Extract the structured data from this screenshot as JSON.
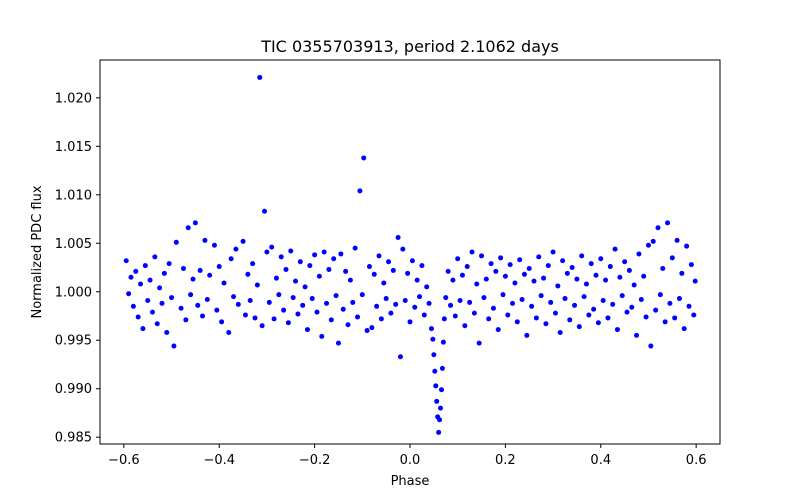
{
  "chart_data": {
    "type": "scatter",
    "title": "TIC 0355703913, period 2.1062 days",
    "xlabel": "Phase",
    "ylabel": "Normalized PDC flux",
    "xlim": [
      -0.65,
      0.65
    ],
    "ylim": [
      0.9843,
      1.0239
    ],
    "xticks": [
      -0.6,
      -0.4,
      -0.2,
      0.0,
      0.2,
      0.4,
      0.6
    ],
    "xtick_labels": [
      "−0.6",
      "−0.4",
      "−0.2",
      "0.0",
      "0.2",
      "0.4",
      "0.6"
    ],
    "yticks": [
      0.985,
      0.99,
      0.995,
      1.0,
      1.005,
      1.01,
      1.015,
      1.02
    ],
    "ytick_labels": [
      "0.985",
      "0.990",
      "0.995",
      "1.000",
      "1.005",
      "1.010",
      "1.015",
      "1.020"
    ],
    "marker_color": "#0000ff",
    "series": [
      {
        "name": "PDC flux",
        "points": [
          [
            -0.595,
            1.0032
          ],
          [
            -0.59,
            0.9998
          ],
          [
            -0.585,
            1.0015
          ],
          [
            -0.58,
            0.9985
          ],
          [
            -0.575,
            1.0021
          ],
          [
            -0.57,
            0.9974
          ],
          [
            -0.565,
            1.0008
          ],
          [
            -0.56,
            0.9962
          ],
          [
            -0.555,
            1.0027
          ],
          [
            -0.55,
            0.9991
          ],
          [
            -0.545,
            1.0012
          ],
          [
            -0.54,
            0.9979
          ],
          [
            -0.535,
            1.0036
          ],
          [
            -0.53,
            0.9967
          ],
          [
            -0.525,
            1.0004
          ],
          [
            -0.52,
            0.9988
          ],
          [
            -0.515,
            1.0019
          ],
          [
            -0.51,
            0.9958
          ],
          [
            -0.505,
            1.0029
          ],
          [
            -0.5,
            0.9994
          ],
          [
            -0.495,
            0.9944
          ],
          [
            -0.49,
            1.0051
          ],
          [
            -0.48,
            0.9983
          ],
          [
            -0.475,
            1.0024
          ],
          [
            -0.47,
            0.9971
          ],
          [
            -0.465,
            1.0066
          ],
          [
            -0.46,
            0.9997
          ],
          [
            -0.455,
            1.0013
          ],
          [
            -0.45,
            1.0071
          ],
          [
            -0.445,
            0.9986
          ],
          [
            -0.44,
            1.0022
          ],
          [
            -0.435,
            0.9975
          ],
          [
            -0.43,
            1.0053
          ],
          [
            -0.425,
            0.9992
          ],
          [
            -0.42,
            1.0017
          ],
          [
            -0.41,
            1.0048
          ],
          [
            -0.405,
            0.9981
          ],
          [
            -0.4,
            1.0026
          ],
          [
            -0.395,
            0.9969
          ],
          [
            -0.39,
            1.0009
          ],
          [
            -0.38,
            0.9958
          ],
          [
            -0.375,
            1.0034
          ],
          [
            -0.37,
            0.9995
          ],
          [
            -0.365,
            1.0044
          ],
          [
            -0.36,
            0.9987
          ],
          [
            -0.35,
            1.0052
          ],
          [
            -0.345,
            0.9976
          ],
          [
            -0.34,
            1.0018
          ],
          [
            -0.335,
            0.9991
          ],
          [
            -0.33,
            1.0029
          ],
          [
            -0.325,
            0.9973
          ],
          [
            -0.32,
            1.0007
          ],
          [
            -0.315,
            1.0221
          ],
          [
            -0.31,
            0.9965
          ],
          [
            -0.305,
            1.0083
          ],
          [
            -0.3,
            1.0041
          ],
          [
            -0.295,
            0.9989
          ],
          [
            -0.29,
            1.0046
          ],
          [
            -0.285,
            0.9972
          ],
          [
            -0.28,
            1.0014
          ],
          [
            -0.275,
            0.9997
          ],
          [
            -0.27,
            1.0036
          ],
          [
            -0.265,
            0.9981
          ],
          [
            -0.26,
            1.0023
          ],
          [
            -0.255,
            0.9968
          ],
          [
            -0.25,
            1.0042
          ],
          [
            -0.245,
            0.9994
          ],
          [
            -0.24,
            1.0011
          ],
          [
            -0.235,
            0.9977
          ],
          [
            -0.23,
            1.0031
          ],
          [
            -0.225,
            0.9986
          ],
          [
            -0.22,
            1.0005
          ],
          [
            -0.215,
            0.9961
          ],
          [
            -0.21,
            1.0027
          ],
          [
            -0.205,
            0.9993
          ],
          [
            -0.2,
            1.0038
          ],
          [
            -0.195,
            0.9979
          ],
          [
            -0.19,
            1.0016
          ],
          [
            -0.185,
            0.9954
          ],
          [
            -0.18,
            1.0041
          ],
          [
            -0.175,
            0.9988
          ],
          [
            -0.17,
            1.0023
          ],
          [
            -0.165,
            0.9971
          ],
          [
            -0.16,
            1.0034
          ],
          [
            -0.155,
            0.9996
          ],
          [
            -0.15,
            0.9947
          ],
          [
            -0.145,
            1.0039
          ],
          [
            -0.14,
            0.9982
          ],
          [
            -0.135,
            1.0021
          ],
          [
            -0.13,
            0.9966
          ],
          [
            -0.125,
            1.0012
          ],
          [
            -0.12,
            0.9989
          ],
          [
            -0.115,
            1.0045
          ],
          [
            -0.11,
            0.9974
          ],
          [
            -0.105,
            1.0104
          ],
          [
            -0.1,
            0.9997
          ],
          [
            -0.097,
            1.0138
          ],
          [
            -0.09,
            0.996
          ],
          [
            -0.085,
            1.0026
          ],
          [
            -0.08,
            0.9963
          ],
          [
            -0.075,
            1.0018
          ],
          [
            -0.07,
            0.9985
          ],
          [
            -0.065,
            1.0037
          ],
          [
            -0.06,
            0.9972
          ],
          [
            -0.055,
            1.0009
          ],
          [
            -0.05,
            0.9993
          ],
          [
            -0.045,
            1.0031
          ],
          [
            -0.04,
            0.9978
          ],
          [
            -0.035,
            1.0022
          ],
          [
            -0.03,
            0.9987
          ],
          [
            -0.025,
            1.0056
          ],
          [
            -0.02,
            0.9933
          ],
          [
            -0.015,
            1.0044
          ],
          [
            -0.01,
            0.9991
          ],
          [
            -0.005,
            1.0019
          ],
          [
            0.0,
            0.9969
          ],
          [
            0.005,
            1.0032
          ],
          [
            0.01,
            0.9984
          ],
          [
            0.015,
            1.0012
          ],
          [
            0.02,
            0.9995
          ],
          [
            0.025,
            1.0027
          ],
          [
            0.03,
            0.9976
          ],
          [
            0.035,
            1.0005
          ],
          [
            0.04,
            0.9988
          ],
          [
            0.045,
            0.9962
          ],
          [
            0.048,
            0.9951
          ],
          [
            0.05,
            0.9935
          ],
          [
            0.052,
            0.9918
          ],
          [
            0.054,
            0.9903
          ],
          [
            0.056,
            0.9887
          ],
          [
            0.058,
            0.9871
          ],
          [
            0.06,
            0.9855
          ],
          [
            0.062,
            0.9868
          ],
          [
            0.064,
            0.988
          ],
          [
            0.066,
            0.9899
          ],
          [
            0.068,
            0.9921
          ],
          [
            0.07,
            0.9948
          ],
          [
            0.072,
            0.9972
          ],
          [
            0.075,
            0.9994
          ],
          [
            0.08,
            1.0021
          ],
          [
            0.085,
            0.9986
          ],
          [
            0.09,
            1.0012
          ],
          [
            0.095,
            0.9975
          ],
          [
            0.1,
            1.0034
          ],
          [
            0.105,
            0.9991
          ],
          [
            0.11,
            1.0017
          ],
          [
            0.115,
            0.9965
          ],
          [
            0.12,
            1.0026
          ],
          [
            0.125,
            0.9989
          ],
          [
            0.13,
            1.0041
          ],
          [
            0.135,
            0.9978
          ],
          [
            0.14,
            1.0008
          ],
          [
            0.145,
            0.9947
          ],
          [
            0.15,
            1.0037
          ],
          [
            0.155,
            0.9994
          ],
          [
            0.16,
            1.0013
          ],
          [
            0.165,
            0.9972
          ],
          [
            0.17,
            1.0029
          ],
          [
            0.175,
            0.9983
          ],
          [
            0.18,
            1.0021
          ],
          [
            0.185,
            0.9961
          ],
          [
            0.19,
            1.0035
          ],
          [
            0.195,
            0.9997
          ],
          [
            0.2,
            1.0016
          ],
          [
            0.205,
            0.9976
          ],
          [
            0.21,
            1.0028
          ],
          [
            0.215,
            0.9988
          ],
          [
            0.22,
            1.0009
          ],
          [
            0.225,
            0.9969
          ],
          [
            0.23,
            1.0033
          ],
          [
            0.235,
            0.9992
          ],
          [
            0.24,
            1.0018
          ],
          [
            0.245,
            0.9955
          ],
          [
            0.25,
            1.0024
          ],
          [
            0.255,
            0.9985
          ],
          [
            0.26,
            1.0011
          ],
          [
            0.265,
            0.9973
          ],
          [
            0.27,
            1.0036
          ],
          [
            0.275,
            0.9996
          ],
          [
            0.28,
            1.0014
          ],
          [
            0.285,
            0.9967
          ],
          [
            0.29,
            1.0027
          ],
          [
            0.295,
            0.9989
          ],
          [
            0.3,
            1.0041
          ],
          [
            0.305,
            0.9978
          ],
          [
            0.31,
            1.0006
          ],
          [
            0.315,
            0.9958
          ],
          [
            0.32,
            1.0032
          ],
          [
            0.325,
            0.9993
          ],
          [
            0.33,
            1.0019
          ],
          [
            0.335,
            0.9971
          ],
          [
            0.34,
            1.0025
          ],
          [
            0.345,
            0.9986
          ],
          [
            0.35,
            1.0013
          ],
          [
            0.355,
            0.9964
          ],
          [
            0.36,
            1.0037
          ],
          [
            0.365,
            0.9995
          ],
          [
            0.37,
            1.0008
          ],
          [
            0.375,
            0.9976
          ],
          [
            0.38,
            1.0029
          ],
          [
            0.385,
            0.9982
          ],
          [
            0.39,
            1.0017
          ],
          [
            0.395,
            0.9968
          ],
          [
            0.4,
            1.0034
          ],
          [
            0.405,
            0.9991
          ],
          [
            0.41,
            1.0012
          ],
          [
            0.415,
            0.9973
          ],
          [
            0.42,
            1.0026
          ],
          [
            0.425,
            0.9987
          ],
          [
            0.43,
            1.0044
          ],
          [
            0.435,
            0.9961
          ],
          [
            0.44,
            1.0015
          ],
          [
            0.445,
            0.9996
          ],
          [
            0.45,
            1.0031
          ],
          [
            0.455,
            0.9979
          ],
          [
            0.46,
            1.0022
          ],
          [
            0.465,
            0.9984
          ],
          [
            0.47,
            1.0007
          ],
          [
            0.475,
            0.9955
          ],
          [
            0.48,
            1.0039
          ],
          [
            0.485,
            0.9992
          ],
          [
            0.49,
            1.0016
          ],
          [
            0.495,
            0.9974
          ],
          [
            0.5,
            1.0048
          ],
          [
            0.505,
            0.9944
          ],
          [
            0.51,
            1.0052
          ],
          [
            0.515,
            0.9981
          ],
          [
            0.52,
            1.0066
          ],
          [
            0.525,
            0.9997
          ],
          [
            0.53,
            1.0024
          ],
          [
            0.535,
            0.9969
          ],
          [
            0.54,
            1.0071
          ],
          [
            0.545,
            0.9988
          ],
          [
            0.55,
            1.0035
          ],
          [
            0.555,
            0.9973
          ],
          [
            0.56,
            1.0053
          ],
          [
            0.565,
            0.9993
          ],
          [
            0.57,
            1.0019
          ],
          [
            0.575,
            0.9962
          ],
          [
            0.58,
            1.0047
          ],
          [
            0.585,
            0.9985
          ],
          [
            0.59,
            1.0028
          ],
          [
            0.595,
            0.9976
          ],
          [
            0.598,
            1.0011
          ]
        ]
      }
    ]
  }
}
